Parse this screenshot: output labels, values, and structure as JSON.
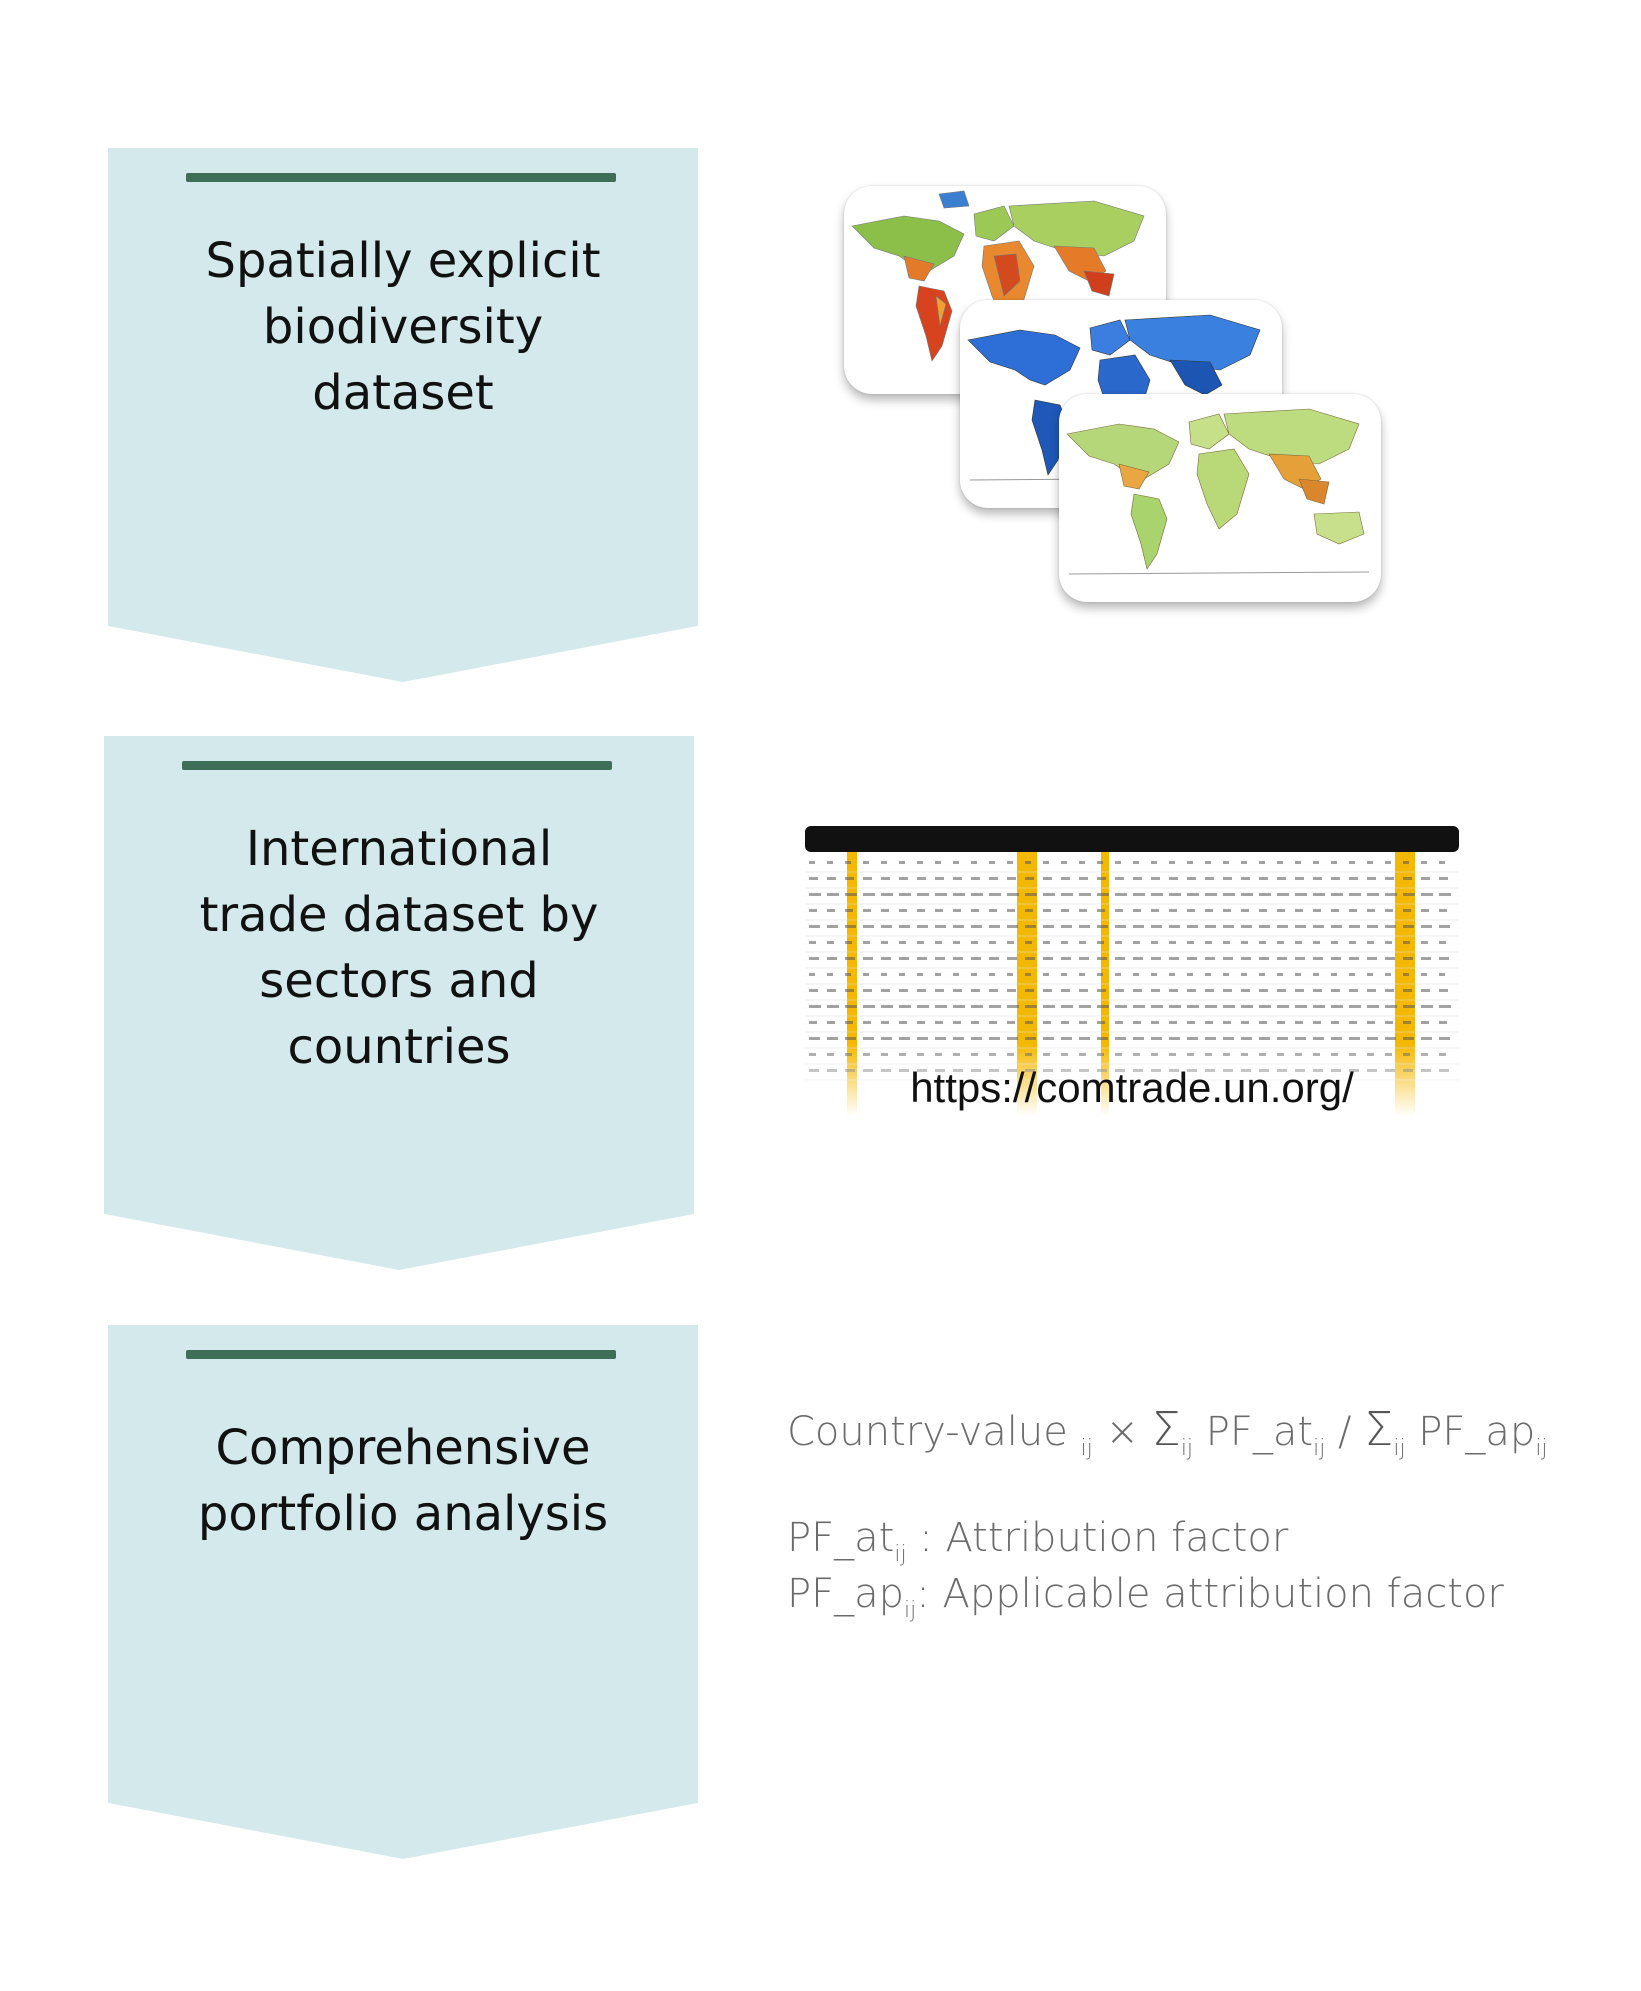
{
  "steps": [
    {
      "lines": [
        "Spatially explicit",
        "biodiversity",
        "dataset"
      ]
    },
    {
      "lines": [
        "International",
        "trade dataset by",
        "sectors and",
        "countries"
      ]
    },
    {
      "lines": [
        "Comprehensive",
        "portfolio analysis"
      ]
    }
  ],
  "trade": {
    "url": "https://comtrade.un.org/"
  },
  "formula": {
    "country_value": "Country-value",
    "sub_ij": "ij",
    "times": "×",
    "sigma": "Σ",
    "pf_at": "PF_at",
    "slash": "/",
    "pf_ap": "PF_ap",
    "def_at_desc": ": Attribution factor",
    "def_ap_desc": ": Applicable attribution factor"
  },
  "colors": {
    "chevron_fill": "#d3e9eb",
    "chevron_bar": "#3f6e58",
    "table_highlight": "#f5b800",
    "table_header": "#111111"
  }
}
